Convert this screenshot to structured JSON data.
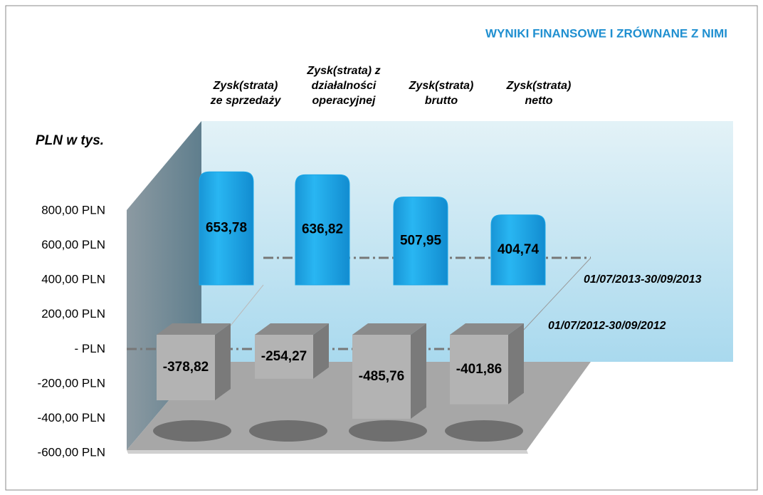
{
  "chart_data": {
    "type": "bar3d",
    "title": "WYNIKI FINANSOWE I ZRÓWNANE Z NIMI",
    "y_label": "PLN w tys.",
    "categories": [
      "Zysk(strata)\nze sprzedaży",
      "Zysk(strata) z\ndziałalności\noperacyjnej",
      "Zysk(strata)\nbrutto",
      "Zysk(strata)\nnetto"
    ],
    "series": [
      {
        "name": "01/07/2013-30/09/2013",
        "color": "#1aa6e6",
        "values": [
          653.78,
          636.82,
          507.95,
          404.74
        ],
        "value_labels": [
          "653,78",
          "636,82",
          "507,95",
          "404,74"
        ]
      },
      {
        "name": "01/07/2012-30/09/2012",
        "color": "#b3b3b3",
        "values": [
          -378.82,
          -254.27,
          -485.76,
          -401.86
        ],
        "value_labels": [
          "-378,82",
          "-254,27",
          "-485,76",
          "-401,86"
        ]
      }
    ],
    "ylim": [
      -600,
      800
    ],
    "yticks": [
      {
        "value": -600,
        "label": "-600,00 PLN"
      },
      {
        "value": -400,
        "label": "-400,00 PLN"
      },
      {
        "value": -200,
        "label": "-200,00 PLN"
      },
      {
        "value": 0,
        "label": "-   PLN"
      },
      {
        "value": 200,
        "label": "200,00 PLN"
      },
      {
        "value": 400,
        "label": "400,00 PLN"
      },
      {
        "value": 600,
        "label": "600,00 PLN"
      },
      {
        "value": 800,
        "label": "800,00 PLN"
      }
    ]
  }
}
